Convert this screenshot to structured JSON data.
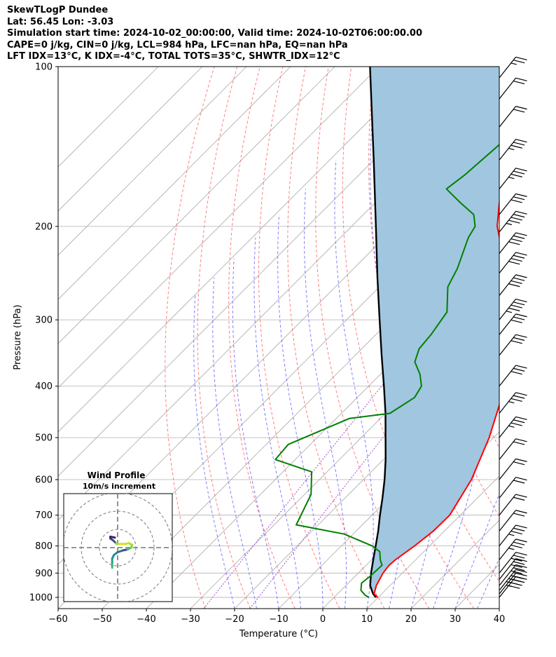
{
  "header": {
    "line1": "SkewTLogP Dundee",
    "line2": "Lat: 56.45   Lon: -3.03",
    "line3": "Simulation start time: 2024-10-02_00:00:00, Valid time: 2024-10-02T06:00:00.00",
    "line4": "CAPE=0 j/kg, CIN=0 j/kg, LCL=984 hPa, LFC=nan hPa, EQ=nan hPa",
    "line5": "LFT IDX=13°C, K IDX=-4°C, TOTAL TOTS=35°C, SHWTR_IDX=12°C"
  },
  "chart_data": {
    "type": "skew-t",
    "xlabel": "Temperature (°C)",
    "ylabel": "Pressure (hPa)",
    "xlim": [
      -60,
      40
    ],
    "ylim": [
      1050,
      100
    ],
    "y_scale": "log",
    "x_ticks": [
      -60,
      -50,
      -40,
      -30,
      -20,
      -10,
      0,
      10,
      20,
      30,
      40
    ],
    "x_tick_labels": [
      "−60",
      "−50",
      "−40",
      "−30",
      "−20",
      "−10",
      "0",
      "10",
      "20",
      "30",
      "40"
    ],
    "y_ticks": [
      1000,
      900,
      800,
      700,
      600,
      500,
      400,
      300,
      200,
      100
    ],
    "y_tick_labels": [
      "1000",
      "900",
      "800",
      "700",
      "600",
      "500",
      "400",
      "300",
      "200",
      "100"
    ],
    "grid": true,
    "colors": {
      "temperature": "#ff0000",
      "dewpoint": "#008000",
      "parcel": "#000000",
      "cape_fill": "#a1c6e0",
      "dry_adiabats": "#ff6a6a",
      "moist_adiabats": "#6b6bff",
      "mixing_ratio": "#a64dcc",
      "isotherms": "#aaaaaa"
    },
    "series": [
      {
        "key": "temperature",
        "points": [
          [
            1000,
            9.9
          ],
          [
            985,
            8.3
          ],
          [
            950,
            6.9
          ],
          [
            900,
            5.6
          ],
          [
            870,
            5.2
          ],
          [
            850,
            5.4
          ],
          [
            800,
            6.6
          ],
          [
            750,
            7.5
          ],
          [
            700,
            7.6
          ],
          [
            600,
            4.5
          ],
          [
            500,
            -1.0
          ],
          [
            400,
            -9.0
          ],
          [
            350,
            -15.0
          ],
          [
            300,
            -22.5
          ],
          [
            280,
            -26.5
          ],
          [
            260,
            -32.0
          ],
          [
            240,
            -36.0
          ],
          [
            220,
            -41.0
          ],
          [
            200,
            -47.0
          ],
          [
            180,
            -52.0
          ],
          [
            160,
            -56.0
          ],
          [
            150,
            -58.0
          ],
          [
            140,
            -62.0
          ],
          [
            120,
            -69.0
          ],
          [
            100,
            -78.0
          ]
        ]
      },
      {
        "key": "dewpoint",
        "points": [
          [
            1000,
            7.9
          ],
          [
            990,
            6.5
          ],
          [
            970,
            4.5
          ],
          [
            940,
            3.0
          ],
          [
            910,
            3.4
          ],
          [
            870,
            3.6
          ],
          [
            850,
            2.0
          ],
          [
            820,
            0.0
          ],
          [
            800,
            -3.0
          ],
          [
            760,
            -12.0
          ],
          [
            730,
            -25.0
          ],
          [
            690,
            -26.5
          ],
          [
            640,
            -28.5
          ],
          [
            580,
            -33.5
          ],
          [
            550,
            -44.5
          ],
          [
            515,
            -45.0
          ],
          [
            460,
            -37.0
          ],
          [
            450,
            -29.0
          ],
          [
            420,
            -27.0
          ],
          [
            400,
            -28.0
          ],
          [
            380,
            -31.0
          ],
          [
            360,
            -35.0
          ],
          [
            340,
            -37.0
          ],
          [
            320,
            -37.5
          ],
          [
            290,
            -39.0
          ],
          [
            260,
            -44.5
          ],
          [
            240,
            -46.5
          ],
          [
            210,
            -51.0
          ],
          [
            200,
            -52.0
          ],
          [
            190,
            -55.0
          ],
          [
            180,
            -61.0
          ],
          [
            170,
            -67.0
          ],
          [
            160,
            -66.0
          ],
          [
            140,
            -65.0
          ],
          [
            120,
            -67.0
          ],
          [
            100,
            -71.0
          ]
        ]
      },
      {
        "key": "parcel",
        "points": [
          [
            1000,
            9.5
          ],
          [
            984,
            8.0
          ],
          [
            950,
            5.5
          ],
          [
            900,
            2.9
          ],
          [
            850,
            0.4
          ],
          [
            800,
            -2.2
          ],
          [
            750,
            -5.0
          ],
          [
            700,
            -8.2
          ],
          [
            650,
            -11.5
          ],
          [
            600,
            -15.2
          ],
          [
            550,
            -19.5
          ],
          [
            500,
            -24.5
          ],
          [
            450,
            -30.0
          ],
          [
            400,
            -36.5
          ],
          [
            350,
            -44.0
          ],
          [
            300,
            -52.5
          ],
          [
            250,
            -62.5
          ],
          [
            200,
            -74.5
          ],
          [
            150,
            -90.0
          ],
          [
            100,
            -112.0
          ]
        ]
      }
    ],
    "wind_barbs": [
      {
        "p": 1000,
        "kts": 40
      },
      {
        "p": 985,
        "kts": 35
      },
      {
        "p": 970,
        "kts": 35
      },
      {
        "p": 950,
        "kts": 30
      },
      {
        "p": 925,
        "kts": 30
      },
      {
        "p": 900,
        "kts": 30
      },
      {
        "p": 850,
        "kts": 25
      },
      {
        "p": 800,
        "kts": 25
      },
      {
        "p": 750,
        "kts": 20
      },
      {
        "p": 700,
        "kts": 20
      },
      {
        "p": 650,
        "kts": 20
      },
      {
        "p": 600,
        "kts": 20
      },
      {
        "p": 550,
        "kts": 20
      },
      {
        "p": 500,
        "kts": 25
      },
      {
        "p": 450,
        "kts": 25
      },
      {
        "p": 400,
        "kts": 30
      },
      {
        "p": 350,
        "kts": 30
      },
      {
        "p": 320,
        "kts": 30
      },
      {
        "p": 300,
        "kts": 35
      },
      {
        "p": 270,
        "kts": 40
      },
      {
        "p": 245,
        "kts": 40
      },
      {
        "p": 225,
        "kts": 40
      },
      {
        "p": 205,
        "kts": 35
      },
      {
        "p": 190,
        "kts": 30
      },
      {
        "p": 170,
        "kts": 25
      },
      {
        "p": 150,
        "kts": 25
      },
      {
        "p": 130,
        "kts": 20
      },
      {
        "p": 115,
        "kts": 20
      },
      {
        "p": 105,
        "kts": 15
      }
    ],
    "hodograph": {
      "title": "Wind Profile",
      "subtitle": "10m/s increment",
      "rings_ms": [
        10,
        20,
        30
      ],
      "track_ms": [
        [
          -3,
          -11
        ],
        [
          -3,
          -10
        ],
        [
          -3,
          -8
        ],
        [
          -3,
          -6
        ],
        [
          -2,
          -4
        ],
        [
          0,
          -2.5
        ],
        [
          3,
          -1.5
        ],
        [
          5.5,
          -1
        ],
        [
          7.5,
          0
        ],
        [
          8,
          1.5
        ],
        [
          6,
          2.5
        ],
        [
          4.5,
          2
        ],
        [
          -0.5,
          2
        ],
        [
          -1.5,
          3
        ],
        [
          -2.5,
          4
        ],
        [
          -4,
          5
        ],
        [
          -4,
          6
        ],
        [
          -1.5,
          5.5
        ]
      ]
    }
  }
}
